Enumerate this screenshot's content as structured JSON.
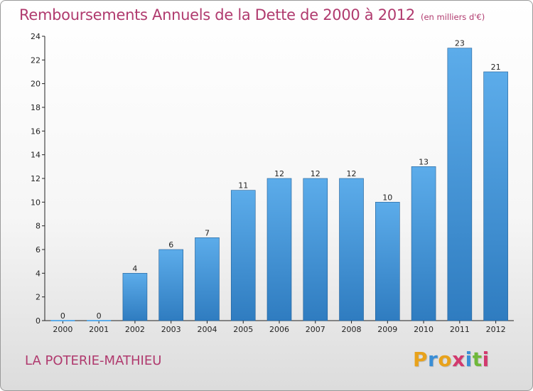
{
  "title": "Remboursements Annuels de la Dette de 2000 à 2012",
  "subtitle": "(en milliers d'€)",
  "town": "LA POTERIE-MATHIEU",
  "logo": {
    "text": "Proxiti",
    "letter_colors": [
      "#e8a21b",
      "#3a8ed6",
      "#e8a21b",
      "#d23a6e",
      "#3a8ed6",
      "#6fb83a",
      "#d23a6e"
    ]
  },
  "colors": {
    "bar_top": "#5cacea",
    "bar_bottom": "#2f7cc0",
    "title": "#b03a6e"
  },
  "chart_data": {
    "type": "bar",
    "title": "Remboursements Annuels de la Dette de 2000 à 2012",
    "subtitle": "(en milliers d'€)",
    "categories": [
      "2000",
      "2001",
      "2002",
      "2003",
      "2004",
      "2005",
      "2006",
      "2007",
      "2008",
      "2009",
      "2010",
      "2011",
      "2012"
    ],
    "values": [
      0,
      0,
      4,
      6,
      7,
      11,
      12,
      12,
      12,
      10,
      13,
      23,
      21
    ],
    "data_labels": [
      "0",
      "0",
      "4",
      "6",
      "7",
      "11",
      "12",
      "12",
      "12",
      "10",
      "13",
      "23",
      "21"
    ],
    "ylim": [
      0,
      24
    ],
    "yticks": [
      0,
      2,
      4,
      6,
      8,
      10,
      12,
      14,
      16,
      18,
      20,
      22,
      24
    ],
    "grid": false
  }
}
